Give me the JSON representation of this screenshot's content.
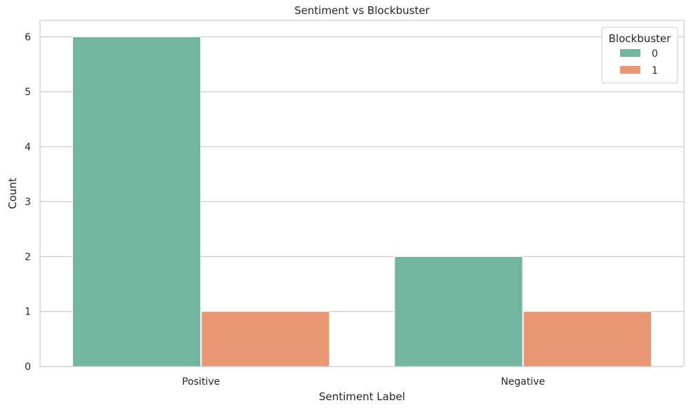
{
  "chart_data": {
    "type": "bar",
    "title": "Sentiment vs Blockbuster",
    "xlabel": "Sentiment Label",
    "ylabel": "Count",
    "categories": [
      "Positive",
      "Negative"
    ],
    "series": [
      {
        "name": "0",
        "values": [
          6,
          2
        ],
        "color": "#72b6a0"
      },
      {
        "name": "1",
        "values": [
          1,
          1
        ],
        "color": "#e99675"
      }
    ],
    "ylim": [
      0,
      6.3
    ],
    "yticks": [
      0,
      1,
      2,
      3,
      4,
      5,
      6
    ],
    "grid": true,
    "legend": {
      "title": "Blockbuster",
      "position": "top-right"
    }
  }
}
